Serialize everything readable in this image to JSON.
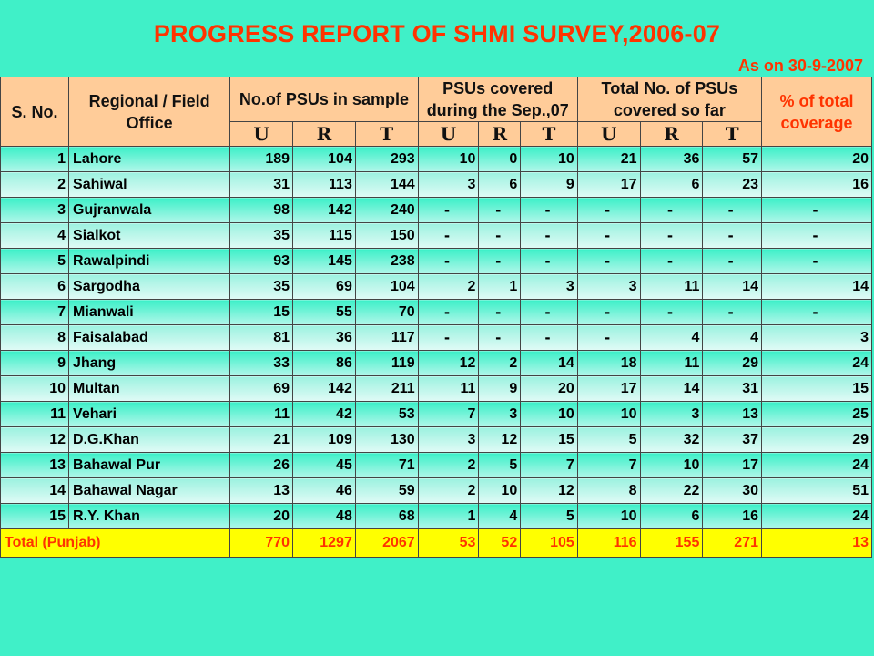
{
  "title": "PROGRESS REPORT OF SHMI SURVEY,2006-07",
  "as_on": "As on 30-9-2007",
  "headers": {
    "sno": "S. No.",
    "office": "Regional / Field Office",
    "sample": "No.of PSUs in sample",
    "covered_sep": "PSUs covered during the Sep.,07",
    "covered_total": "Total No. of PSUs covered so far",
    "coverage": "% of total coverage",
    "u": "U",
    "r": "R",
    "t": "T"
  },
  "rows": [
    [
      "1",
      "Lahore",
      "189",
      "104",
      "293",
      "10",
      "0",
      "10",
      "21",
      "36",
      "57",
      "20"
    ],
    [
      "2",
      "Sahiwal",
      "31",
      "113",
      "144",
      "3",
      "6",
      "9",
      "17",
      "6",
      "23",
      "16"
    ],
    [
      "3",
      "Gujranwala",
      "98",
      "142",
      "240",
      "-",
      "-",
      "-",
      "-",
      "-",
      "-",
      "-"
    ],
    [
      "4",
      "Sialkot",
      "35",
      "115",
      "150",
      "-",
      "-",
      "-",
      "-",
      "-",
      "-",
      "-"
    ],
    [
      "5",
      "Rawalpindi",
      "93",
      "145",
      "238",
      "-",
      "-",
      "-",
      "-",
      "-",
      "-",
      "-"
    ],
    [
      "6",
      "Sargodha",
      "35",
      "69",
      "104",
      "2",
      "1",
      "3",
      "3",
      "11",
      "14",
      "14"
    ],
    [
      "7",
      "Mianwali",
      "15",
      "55",
      "70",
      "-",
      "-",
      "-",
      "-",
      "-",
      "-",
      "-"
    ],
    [
      "8",
      "Faisalabad",
      "81",
      "36",
      "117",
      "-",
      "-",
      "-",
      "-",
      "4",
      "4",
      "3"
    ],
    [
      "9",
      "Jhang",
      "33",
      "86",
      "119",
      "12",
      "2",
      "14",
      "18",
      "11",
      "29",
      "24"
    ],
    [
      "10",
      "Multan",
      "69",
      "142",
      "211",
      "11",
      "9",
      "20",
      "17",
      "14",
      "31",
      "15"
    ],
    [
      "11",
      "Vehari",
      "11",
      "42",
      "53",
      "7",
      "3",
      "10",
      "10",
      "3",
      "13",
      "25"
    ],
    [
      "12",
      "D.G.Khan",
      "21",
      "109",
      "130",
      "3",
      "12",
      "15",
      "5",
      "32",
      "37",
      "29"
    ],
    [
      "13",
      "Bahawal Pur",
      "26",
      "45",
      "71",
      "2",
      "5",
      "7",
      "7",
      "10",
      "17",
      "24"
    ],
    [
      "14",
      "Bahawal Nagar",
      "13",
      "46",
      "59",
      "2",
      "10",
      "12",
      "8",
      "22",
      "30",
      "51"
    ],
    [
      "15",
      "R.Y. Khan",
      "20",
      "48",
      "68",
      "1",
      "4",
      "5",
      "10",
      "6",
      "16",
      "24"
    ]
  ],
  "total": [
    "Total (Punjab)",
    "770",
    "1297",
    "2067",
    "53",
    "52",
    "105",
    "116",
    "155",
    "271",
    "13"
  ]
}
